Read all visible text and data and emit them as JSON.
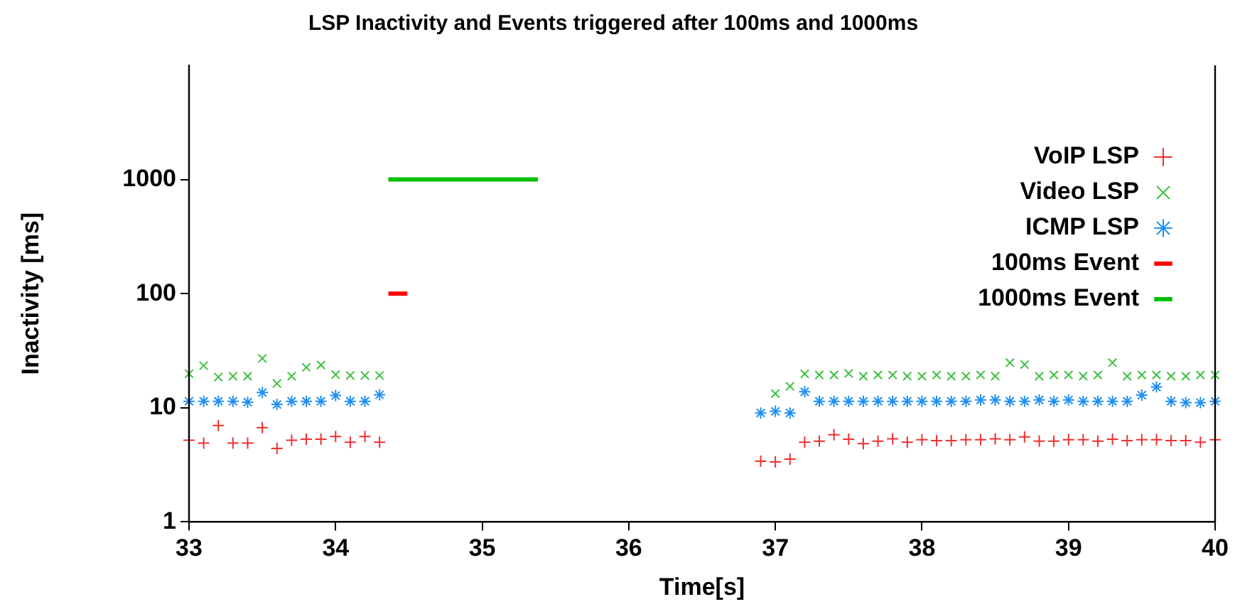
{
  "chart_data": {
    "type": "scatter",
    "title": "LSP Inactivity and Events triggered after 100ms and 1000ms",
    "xlabel": "Time[s]",
    "ylabel": "Inactivity [ms]",
    "x": [
      33,
      33.1,
      33.2,
      33.3,
      33.4,
      33.5,
      33.6,
      33.7,
      33.8,
      33.9,
      34,
      34.1,
      34.2,
      34.3,
      36.9,
      37,
      37.1,
      37.2,
      37.3,
      37.4,
      37.5,
      37.6,
      37.7,
      37.8,
      37.9,
      38,
      38.1,
      38.2,
      38.3,
      38.4,
      38.5,
      38.6,
      38.7,
      38.8,
      38.9,
      39,
      39.1,
      39.2,
      39.3,
      39.4,
      39.5,
      39.6,
      39.7,
      39.8,
      39.9,
      40
    ],
    "series": [
      {
        "name": "VoIP LSP",
        "type": "scatter",
        "marker": "plus",
        "color": "#f03030",
        "values": [
          5.2,
          4.9,
          7.0,
          4.9,
          4.9,
          6.7,
          4.4,
          5.2,
          5.3,
          5.3,
          5.6,
          5.0,
          5.6,
          5.0,
          3.4,
          3.35,
          3.55,
          5.0,
          5.1,
          5.8,
          5.3,
          4.85,
          5.1,
          5.35,
          5.0,
          5.25,
          5.15,
          5.15,
          5.25,
          5.25,
          5.35,
          5.25,
          5.55,
          5.1,
          5.1,
          5.25,
          5.25,
          5.1,
          5.3,
          5.15,
          5.25,
          5.25,
          5.15,
          5.15,
          5.0,
          5.25
        ]
      },
      {
        "name": "Video LSP",
        "type": "scatter",
        "marker": "cross",
        "color": "#40c040",
        "values": [
          19.9,
          23.4,
          18.6,
          18.9,
          18.9,
          27.1,
          16.3,
          18.9,
          22.6,
          23.7,
          19.5,
          19.2,
          19.2,
          19.2,
          null,
          13.3,
          15.4,
          19.8,
          19.4,
          19.4,
          20.0,
          18.9,
          19.4,
          19.4,
          18.9,
          18.9,
          19.4,
          18.9,
          18.9,
          19.4,
          18.9,
          24.8,
          23.9,
          18.9,
          19.4,
          19.4,
          18.9,
          19.4,
          24.8,
          18.9,
          19.4,
          19.4,
          18.9,
          18.9,
          19.4,
          19.4
        ]
      },
      {
        "name": "ICMP LSP",
        "type": "scatter",
        "color": "#2090f0",
        "values": [
          11.4,
          11.4,
          11.4,
          11.4,
          11.2,
          13.6,
          10.7,
          11.4,
          11.4,
          11.4,
          12.8,
          11.4,
          11.4,
          13.0,
          9.0,
          9.3,
          9.0,
          13.8,
          11.4,
          11.4,
          11.4,
          11.4,
          11.4,
          11.4,
          11.4,
          11.4,
          11.4,
          11.4,
          11.4,
          11.7,
          11.7,
          11.4,
          11.4,
          11.7,
          11.4,
          11.7,
          11.4,
          11.4,
          11.4,
          11.4,
          12.9,
          15.2,
          11.4,
          11.1,
          11.1,
          11.4
        ]
      },
      {
        "name": "100ms Event",
        "type": "line",
        "marker": "none",
        "color": "#ff0000",
        "x": [
          34.36,
          34.49
        ],
        "values": [
          100,
          100
        ]
      },
      {
        "name": "1000ms Event",
        "type": "line",
        "marker": "none",
        "color": "#00c000",
        "x": [
          34.36,
          35.38
        ],
        "values": [
          1000,
          1000
        ]
      }
    ],
    "log": "y",
    "xlim": [
      33,
      40
    ],
    "xticks": [
      33,
      34,
      35,
      36,
      37,
      38,
      39,
      40
    ],
    "ylim": [
      1,
      10000
    ],
    "yticks": [
      1,
      10,
      100,
      1000
    ],
    "grid": false,
    "legend": "top right"
  }
}
